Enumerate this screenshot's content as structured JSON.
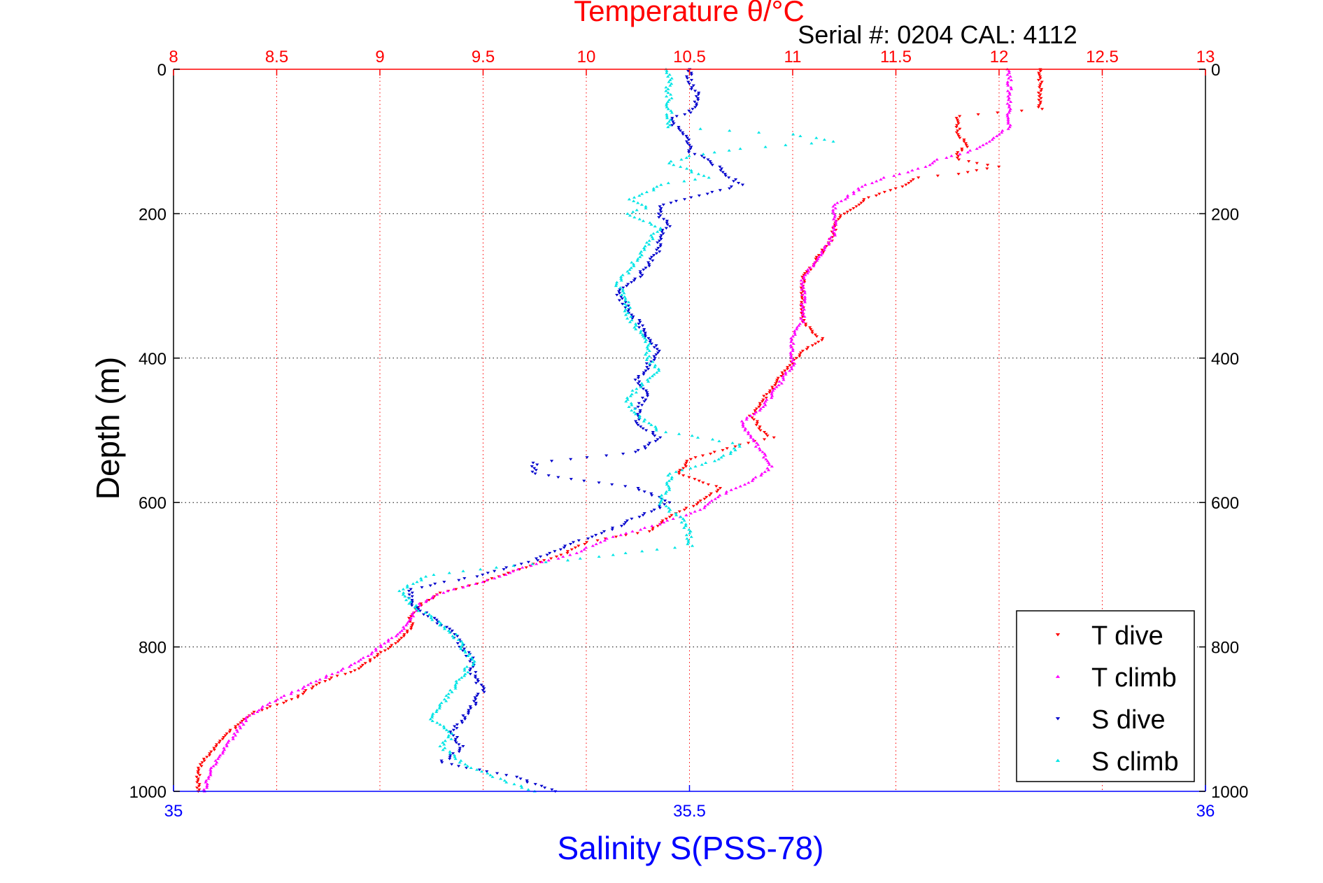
{
  "chart_data": {
    "type": "scatter",
    "title": "Temperature θ/°C",
    "subtitle": "Serial #: 0204  CAL: 4112",
    "ylabel": "Depth (m)",
    "xlabel_bottom": "Salinity S(PSS-78)",
    "top_axis": {
      "range": [
        8,
        13
      ],
      "ticks": [
        "8",
        "8.5",
        "9",
        "9.5",
        "10",
        "10.5",
        "11",
        "11.5",
        "12",
        "12.5",
        "13"
      ]
    },
    "bottom_axis": {
      "range": [
        35,
        36
      ],
      "ticks": [
        "35",
        "35.5",
        "36"
      ]
    },
    "y_axis": {
      "range": [
        0,
        1000
      ],
      "reversed": true,
      "ticks": [
        "0",
        "200",
        "400",
        "600",
        "800",
        "1000"
      ]
    },
    "grid": true,
    "legend_position": "bottom-right",
    "colors": {
      "temperature_axis": "#ff0000",
      "salinity_axis": "#0000ff",
      "t_dive": "#ff0000",
      "t_climb": "#ff00ff",
      "s_dive": "#0000cc",
      "s_climb": "#00e5e5"
    },
    "series": [
      {
        "name": "T dive",
        "axis": "temperature",
        "marker": "triangle-down",
        "depth": [
          0,
          20,
          40,
          55,
          65,
          75,
          90,
          105,
          115,
          125,
          135,
          145,
          150,
          160,
          170,
          180,
          190,
          200,
          215,
          230,
          250,
          270,
          290,
          310,
          330,
          350,
          365,
          375,
          390,
          405,
          420,
          440,
          460,
          480,
          500,
          510,
          520,
          540,
          560,
          580,
          600,
          620,
          640,
          655,
          670,
          690,
          710,
          725,
          740,
          760,
          775,
          790,
          810,
          830,
          850,
          870,
          890,
          900,
          910,
          925,
          940,
          955,
          970,
          985,
          1000
        ],
        "values": [
          12.2,
          12.2,
          12.2,
          12.2,
          11.8,
          11.8,
          11.8,
          11.85,
          11.8,
          11.8,
          12,
          11.8,
          11.6,
          11.55,
          11.45,
          11.35,
          11.3,
          11.25,
          11.2,
          11.2,
          11.15,
          11.1,
          11.05,
          11.05,
          11.05,
          11.05,
          11.1,
          11.15,
          11.05,
          11.0,
          10.95,
          10.9,
          10.85,
          10.8,
          10.85,
          10.9,
          10.75,
          10.5,
          10.45,
          10.65,
          10.55,
          10.4,
          10.3,
          10.0,
          9.9,
          9.7,
          9.5,
          9.3,
          9.2,
          9.15,
          9.15,
          9.1,
          9.0,
          8.9,
          8.7,
          8.6,
          8.4,
          8.35,
          8.3,
          8.25,
          8.2,
          8.15,
          8.12,
          8.12,
          8.12
        ]
      },
      {
        "name": "T climb",
        "axis": "temperature",
        "marker": "triangle-up",
        "depth": [
          0,
          20,
          40,
          60,
          80,
          100,
          115,
          125,
          135,
          150,
          160,
          170,
          180,
          190,
          200,
          215,
          230,
          250,
          270,
          290,
          310,
          330,
          350,
          370,
          390,
          410,
          430,
          450,
          470,
          490,
          510,
          530,
          550,
          570,
          590,
          610,
          630,
          650,
          670,
          690,
          710,
          725,
          740,
          760,
          780,
          800,
          820,
          840,
          860,
          880,
          900,
          920,
          940,
          960,
          980,
          1000
        ],
        "values": [
          12.05,
          12.05,
          12.05,
          12.05,
          12.05,
          11.95,
          11.85,
          11.7,
          11.65,
          11.45,
          11.35,
          11.3,
          11.25,
          11.2,
          11.2,
          11.2,
          11.2,
          11.15,
          11.1,
          11.05,
          11.05,
          11.05,
          11.05,
          11.0,
          11.0,
          11.0,
          10.95,
          10.9,
          10.85,
          10.75,
          10.8,
          10.85,
          10.9,
          10.8,
          10.65,
          10.55,
          10.35,
          10.1,
          9.95,
          9.7,
          9.5,
          9.3,
          9.2,
          9.15,
          9.1,
          9.0,
          8.9,
          8.75,
          8.6,
          8.45,
          8.35,
          8.3,
          8.25,
          8.2,
          8.17,
          8.15
        ]
      },
      {
        "name": "S dive",
        "axis": "salinity",
        "marker": "triangle-down",
        "depth": [
          0,
          20,
          40,
          60,
          70,
          85,
          100,
          115,
          125,
          140,
          150,
          160,
          175,
          190,
          200,
          215,
          230,
          250,
          270,
          290,
          310,
          330,
          350,
          370,
          390,
          410,
          430,
          450,
          470,
          490,
          510,
          530,
          545,
          560,
          580,
          600,
          620,
          640,
          660,
          680,
          700,
          720,
          740,
          760,
          780,
          800,
          820,
          840,
          860,
          880,
          900,
          920,
          940,
          960,
          980,
          1000
        ],
        "values": [
          35.5,
          35.5,
          35.51,
          35.5,
          35.48,
          35.49,
          35.5,
          35.5,
          35.52,
          35.53,
          35.54,
          35.55,
          35.51,
          35.47,
          35.47,
          35.48,
          35.47,
          35.47,
          35.46,
          35.45,
          35.43,
          35.44,
          35.45,
          35.46,
          35.47,
          35.46,
          35.45,
          35.46,
          35.45,
          35.45,
          35.47,
          35.45,
          35.35,
          35.35,
          35.45,
          35.48,
          35.45,
          35.42,
          35.38,
          35.35,
          35.3,
          35.23,
          35.23,
          35.25,
          35.27,
          35.28,
          35.29,
          35.29,
          35.3,
          35.29,
          35.28,
          35.27,
          35.28,
          35.26,
          35.33,
          35.37
        ]
      },
      {
        "name": "S climb",
        "axis": "salinity",
        "marker": "triangle-up",
        "depth": [
          0,
          20,
          40,
          60,
          80,
          90,
          100,
          110,
          120,
          130,
          140,
          150,
          160,
          170,
          180,
          190,
          200,
          220,
          240,
          260,
          280,
          300,
          320,
          340,
          360,
          380,
          400,
          420,
          440,
          460,
          480,
          500,
          520,
          540,
          560,
          580,
          600,
          620,
          640,
          660,
          680,
          700,
          720,
          740,
          760,
          780,
          800,
          820,
          840,
          860,
          880,
          900,
          920,
          940,
          960,
          980,
          1000
        ],
        "values": [
          35.48,
          35.48,
          35.48,
          35.48,
          35.48,
          35.6,
          35.64,
          35.55,
          35.5,
          35.48,
          35.5,
          35.52,
          35.47,
          35.46,
          35.44,
          35.46,
          35.44,
          35.47,
          35.46,
          35.45,
          35.44,
          35.43,
          35.44,
          35.44,
          35.45,
          35.46,
          35.46,
          35.47,
          35.45,
          35.44,
          35.45,
          35.47,
          35.55,
          35.53,
          35.48,
          35.48,
          35.47,
          35.49,
          35.5,
          35.5,
          35.38,
          35.25,
          35.22,
          35.23,
          35.25,
          35.27,
          35.28,
          35.29,
          35.28,
          35.27,
          35.26,
          35.25,
          35.27,
          35.26,
          35.28,
          35.31,
          35.35
        ]
      }
    ]
  }
}
